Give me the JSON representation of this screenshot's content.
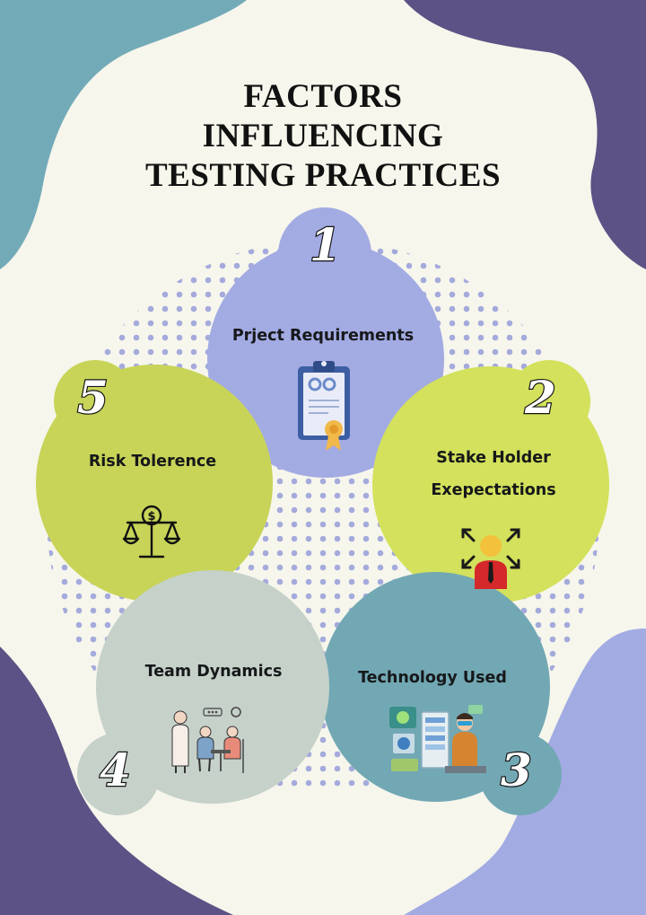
{
  "title": {
    "line1": "FACTORS",
    "line2": "INFLUENCING",
    "line3": "TESTING PRACTICES"
  },
  "factors": [
    {
      "number": "1",
      "label": "Prject Requirements",
      "color": "#a3abe3",
      "icon": "clipboard-icon"
    },
    {
      "number": "2",
      "label_line1": "Stake Holder",
      "label_line2": "Exepectations",
      "color": "#d3e15c",
      "icon": "stakeholder-icon"
    },
    {
      "number": "3",
      "label": "Technology Used",
      "color": "#72a8b4",
      "icon": "technology-icon"
    },
    {
      "number": "4",
      "label": "Team Dynamics",
      "color": "#c5d1c9",
      "icon": "team-icon"
    },
    {
      "number": "5",
      "label": "Risk Tolerence",
      "color": "#c8d458",
      "icon": "scale-icon"
    }
  ],
  "colors": {
    "background": "#f6f6ec",
    "teal_blob": "#73aab8",
    "purple_blob": "#5d5285",
    "lavender_blob": "#a3abe3",
    "dots": "#a5aadc"
  }
}
